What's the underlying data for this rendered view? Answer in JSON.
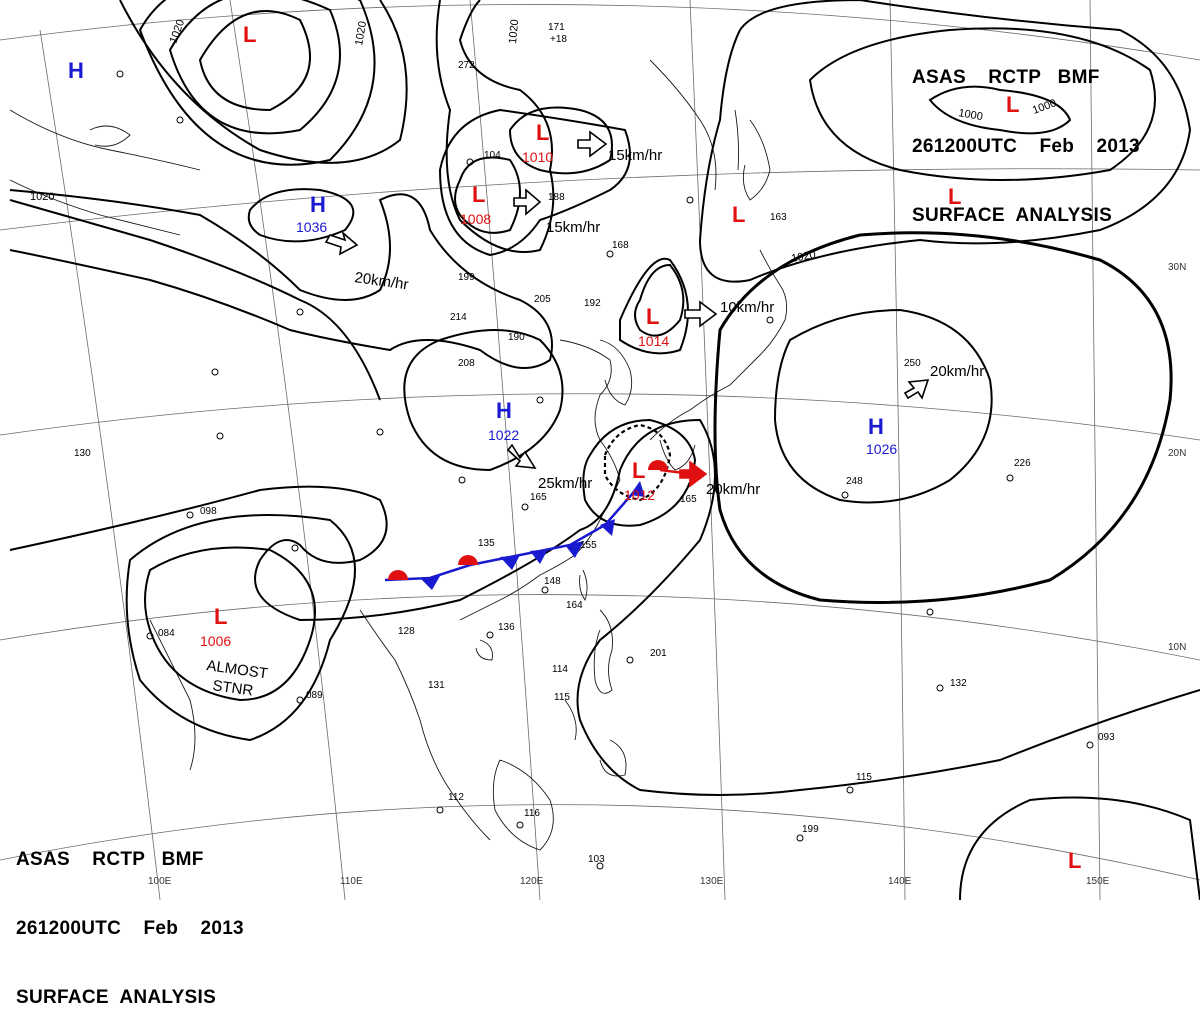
{
  "header": {
    "agency_line": "ASAS    RCTP   BMF",
    "time_line": "261200UTC    Feb    2013",
    "title_line": "SURFACE  ANALYSIS"
  },
  "colors": {
    "high": "#1a1ad0",
    "low": "#e01010",
    "warm_front": "#e01010",
    "cold_front": "#1a1ad0",
    "isobar": "#000000",
    "grid": "#555555"
  },
  "pressure_systems": [
    {
      "id": "low-north-1",
      "type": "L",
      "value": ""
    },
    {
      "id": "high-northwest",
      "type": "H",
      "value": ""
    },
    {
      "id": "high-1036",
      "type": "H",
      "value": "1036"
    },
    {
      "id": "low-1010",
      "type": "L",
      "value": "1010"
    },
    {
      "id": "low-1008",
      "type": "L",
      "value": "1008"
    },
    {
      "id": "low-1014",
      "type": "L",
      "value": "1014"
    },
    {
      "id": "high-1022",
      "type": "H",
      "value": "1022"
    },
    {
      "id": "low-1012",
      "type": "L",
      "value": "1012"
    },
    {
      "id": "high-1026",
      "type": "H",
      "value": "1026"
    },
    {
      "id": "low-1006",
      "type": "L",
      "value": "1006"
    },
    {
      "id": "low-northeast-1",
      "type": "L",
      "value": ""
    },
    {
      "id": "low-northeast-2",
      "type": "L",
      "value": ""
    },
    {
      "id": "low-east",
      "type": "L",
      "value": ""
    },
    {
      "id": "low-southeast",
      "type": "L",
      "value": ""
    }
  ],
  "motion_labels": [
    {
      "id": "move-1036",
      "text": "20km/hr"
    },
    {
      "id": "move-1010",
      "text": "15km/hr"
    },
    {
      "id": "move-1008",
      "text": "15km/hr"
    },
    {
      "id": "move-1014",
      "text": "10km/hr"
    },
    {
      "id": "move-1022",
      "text": "25km/hr"
    },
    {
      "id": "move-1012",
      "text": "20km/hr"
    },
    {
      "id": "move-1026",
      "text": "20km/hr"
    }
  ],
  "stationary_note": {
    "line1": "ALMOST",
    "line2": "STNR"
  },
  "isobar_labels": [
    "1020",
    "1020",
    "1020",
    "1020",
    "1020",
    "1000",
    "1000"
  ],
  "latitude_labels": [
    "30N",
    "20N",
    "10N"
  ],
  "longitude_labels": [
    "100E",
    "110E",
    "120E",
    "130E",
    "140E",
    "150E"
  ],
  "station_samples": [
    "171",
    "+18",
    "272",
    "104",
    "188",
    "192",
    "205",
    "199",
    "214",
    "190",
    "208",
    "165",
    "135",
    "155",
    "148",
    "164",
    "136",
    "128",
    "131",
    "201",
    "089",
    "098",
    "084",
    "130",
    "165",
    "163",
    "168",
    "250",
    "226",
    "248",
    "114",
    "115",
    "112",
    "116",
    "103",
    "093",
    "115",
    "199",
    "132"
  ]
}
